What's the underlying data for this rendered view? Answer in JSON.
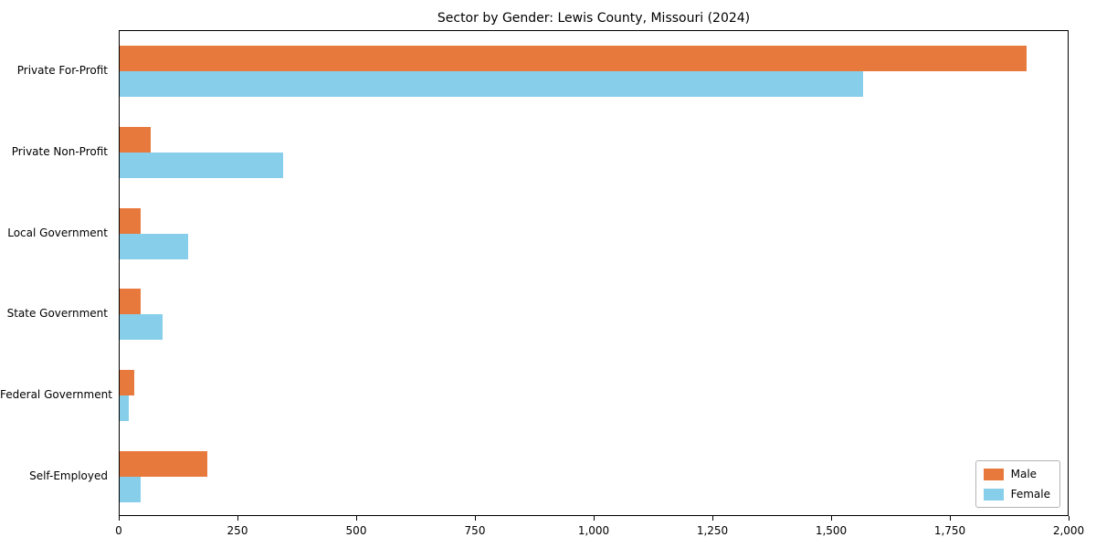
{
  "title": "Sector by Gender: Lewis County, Missouri (2024)",
  "chart_data": {
    "type": "bar",
    "orientation": "horizontal",
    "title": "Sector by Gender: Lewis County, Missouri (2024)",
    "categories": [
      "Private For-Profit",
      "Private Non-Profit",
      "Local Government",
      "State Government",
      "Federal Government",
      "Self-Employed"
    ],
    "series": [
      {
        "name": "Male",
        "color": "#e8793d",
        "values": [
          1910,
          65,
          45,
          45,
          30,
          185
        ]
      },
      {
        "name": "Female",
        "color": "#87ceeb",
        "values": [
          1565,
          345,
          145,
          90,
          20,
          45
        ]
      }
    ],
    "xlabel": "",
    "ylabel": "",
    "xlim": [
      0,
      2000
    ],
    "xticks": [
      0,
      250,
      500,
      750,
      1000,
      1250,
      1500,
      1750,
      2000
    ],
    "grid": false,
    "legend_position": "lower right"
  }
}
